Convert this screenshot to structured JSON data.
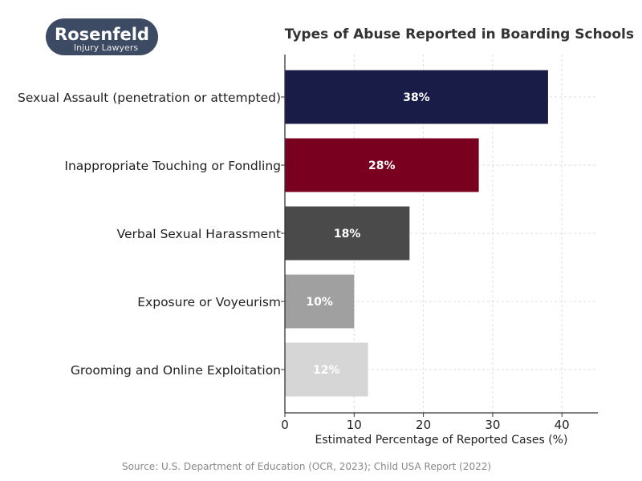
{
  "logo": {
    "name": "Rosenfeld",
    "tagline": "Injury Lawyers",
    "bg": "#3d4a63"
  },
  "chart_data": {
    "type": "bar",
    "orientation": "horizontal",
    "title": "Types of Abuse Reported in Boarding Schools",
    "xlabel": "Estimated Percentage of Reported Cases (%)",
    "ylabel": "",
    "xlim": [
      0,
      45
    ],
    "xticks": [
      0,
      10,
      20,
      30,
      40
    ],
    "grid": true,
    "categories": [
      "Sexual Assault (penetration or attempted)",
      "Inappropriate Touching or Fondling",
      "Verbal Sexual Harassment",
      "Exposure or Voyeurism",
      "Grooming and Online Exploitation"
    ],
    "values": [
      38,
      28,
      18,
      10,
      12
    ],
    "labels": [
      "38%",
      "28%",
      "18%",
      "10%",
      "12%"
    ],
    "colors": [
      "#191c47",
      "#7a0020",
      "#4a4a4a",
      "#a0a0a0",
      "#d6d6d6"
    ]
  },
  "source": "Source: U.S. Department of Education (OCR, 2023); Child USA Report (2022)"
}
